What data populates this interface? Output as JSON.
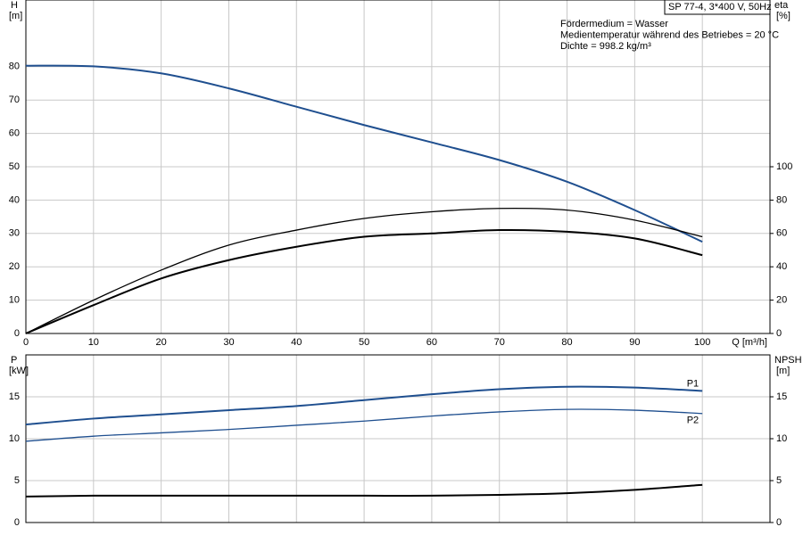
{
  "chart_data": [
    {
      "type": "line",
      "subtitle": "SP 77-4, 3*400 V, 50Hz",
      "annotations": [
        "Fördermedium = Wasser",
        "Medientemperatur während des Betriebes = 20 °C",
        "Dichte = 998.2 kg/m³"
      ],
      "y_label": "H",
      "y_unit": "[m]",
      "y2_label": "eta",
      "y2_unit": "[%]",
      "x_label": "Q [m³/h]",
      "x": [
        0,
        10,
        20,
        30,
        40,
        50,
        60,
        70,
        80,
        90,
        100
      ],
      "series": [
        {
          "color": "#1f4f8f",
          "values": [
            80.3,
            80.1,
            78,
            73.5,
            68,
            62.5,
            57.3,
            52,
            45.5,
            37,
            27.5
          ]
        },
        {
          "color": "#000000",
          "axis": "y2",
          "values": [
            0,
            20,
            38,
            53,
            62,
            69,
            73,
            75,
            74,
            68,
            58
          ]
        },
        {
          "color": "#000000",
          "axis": "y2",
          "values": [
            0,
            17,
            33,
            44,
            52,
            58,
            60,
            62,
            61,
            57,
            47
          ]
        }
      ],
      "xlim": [
        0,
        110
      ],
      "xticks": [
        0,
        10,
        20,
        30,
        40,
        50,
        60,
        70,
        80,
        90,
        100
      ],
      "ylim": [
        0,
        100
      ],
      "yticks": [
        0,
        10,
        20,
        30,
        40,
        50,
        60,
        70,
        80
      ],
      "y2lim": [
        0,
        200
      ],
      "y2ticks": [
        0,
        20,
        40,
        60,
        80,
        100
      ],
      "grid": true,
      "show_xtick_labels": true
    },
    {
      "type": "line",
      "y_label": "P",
      "y_unit": "[kW]",
      "y2_label": "NPSH",
      "y2_unit": "[m]",
      "x": [
        0,
        10,
        20,
        30,
        40,
        50,
        60,
        70,
        80,
        90,
        100
      ],
      "series": [
        {
          "name": "P1",
          "color": "#1f4f8f",
          "values": [
            11.7,
            12.4,
            12.9,
            13.4,
            13.9,
            14.6,
            15.3,
            15.9,
            16.2,
            16.1,
            15.7
          ]
        },
        {
          "name": "P2",
          "color": "#1f4f8f",
          "values": [
            9.7,
            10.3,
            10.7,
            11.1,
            11.6,
            12.1,
            12.7,
            13.2,
            13.5,
            13.4,
            13.0
          ]
        },
        {
          "color": "#000000",
          "axis": "y2",
          "values": [
            3.1,
            3.2,
            3.2,
            3.2,
            3.2,
            3.2,
            3.2,
            3.3,
            3.5,
            3.9,
            4.5
          ]
        }
      ],
      "xlim": [
        0,
        110
      ],
      "xticks": [
        0,
        10,
        20,
        30,
        40,
        50,
        60,
        70,
        80,
        90,
        100
      ],
      "ylim": [
        0,
        20
      ],
      "yticks": [
        0,
        5,
        10,
        15
      ],
      "y2lim": [
        0,
        20
      ],
      "y2ticks": [
        0,
        5,
        10,
        15
      ],
      "grid": true,
      "show_xtick_labels": false
    }
  ]
}
